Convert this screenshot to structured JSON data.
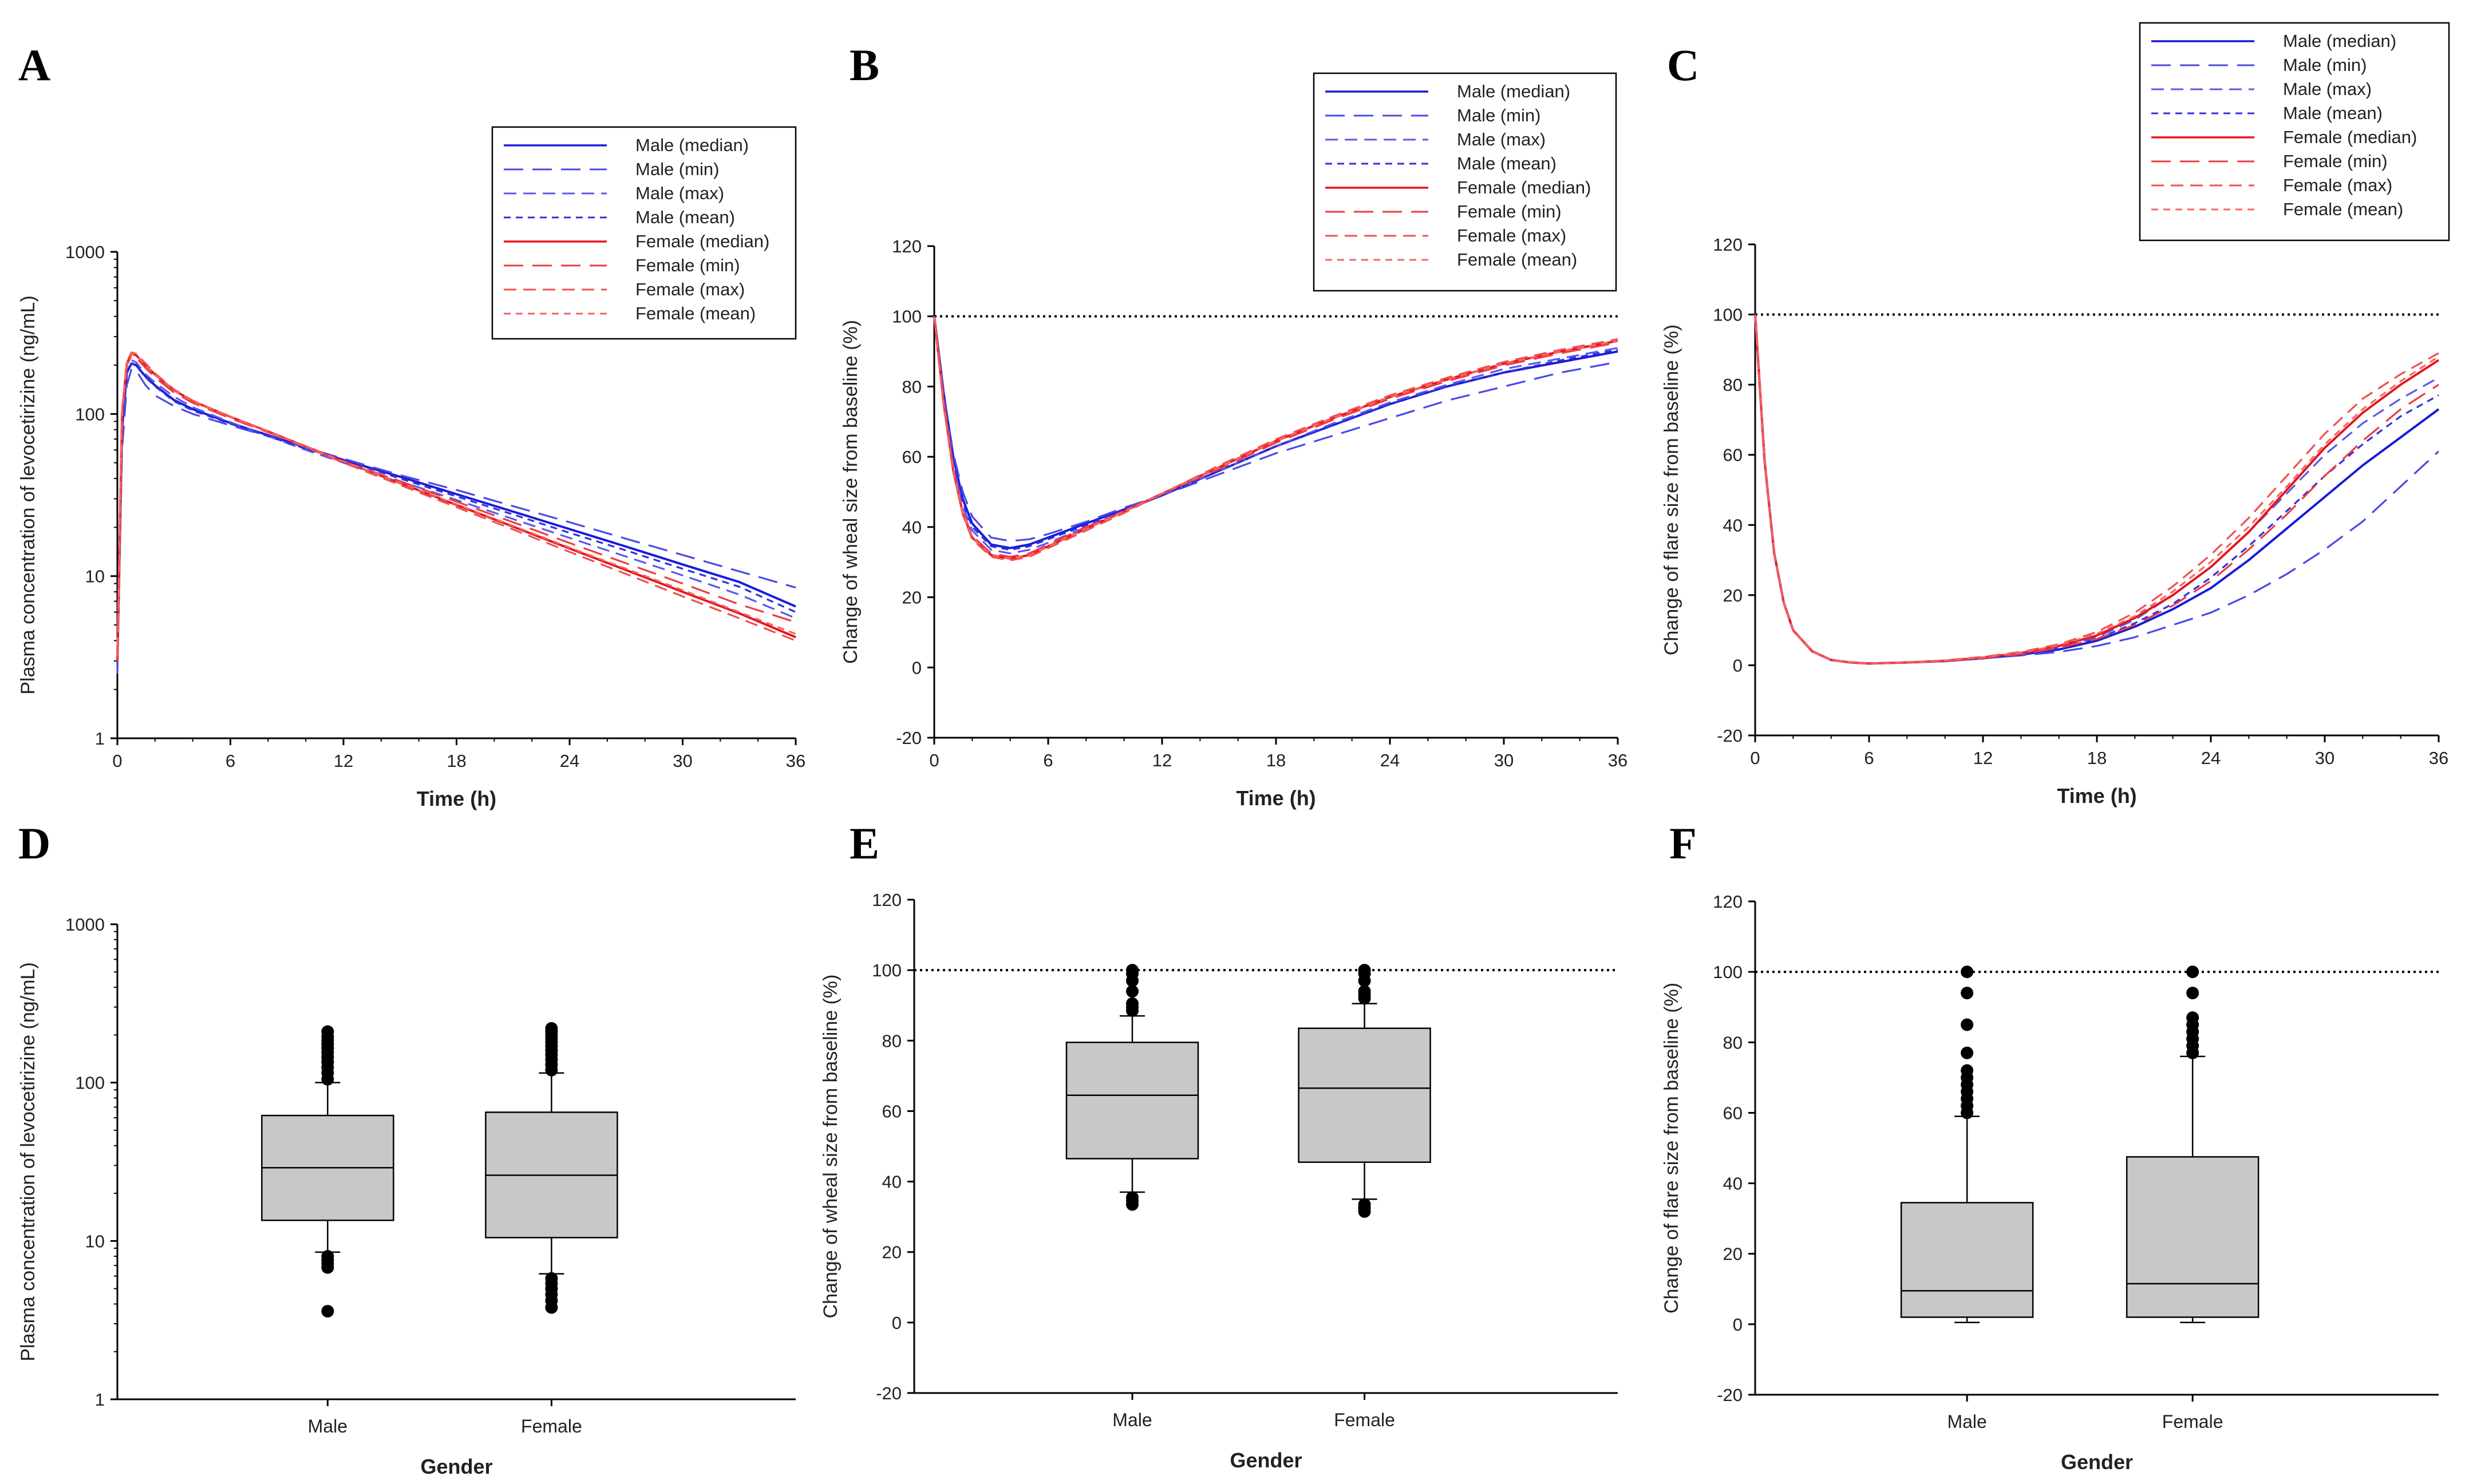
{
  "chart_data": [
    {
      "panel": "A",
      "type": "line",
      "xlabel": "Time (h)",
      "ylabel": "Plasma concentration of levocetirizine (ng/mL)",
      "yscale": "log",
      "ylim": [
        1,
        1000
      ],
      "xlim": [
        0,
        36
      ],
      "xticks": [
        "0",
        "6",
        "12",
        "18",
        "24",
        "30",
        "36"
      ],
      "yticks": [
        "1",
        "10",
        "100",
        "1000"
      ],
      "legend_position": "top-right",
      "legend": [
        "Male (median)",
        "Male (min)",
        "Male (max)",
        "Male (mean)",
        "Female (median)",
        "Female (min)",
        "Female (max)",
        "Female (mean)"
      ],
      "x": [
        0,
        0.25,
        0.5,
        0.75,
        1,
        1.5,
        2,
        3,
        4,
        6,
        8,
        10,
        12,
        15,
        18,
        21,
        24,
        27,
        30,
        33,
        36
      ],
      "series": [
        {
          "name": "Male (median)",
          "color": "#1a1adc",
          "style": "solid",
          "values": [
            3,
            80,
            180,
            205,
            200,
            170,
            150,
            122,
            107,
            88,
            74,
            62,
            52,
            41,
            32,
            25,
            19.5,
            15.2,
            11.8,
            9.2,
            6.5
          ]
        },
        {
          "name": "Male (min)",
          "color": "#4a4ae6",
          "style": "longdash",
          "values": [
            2.5,
            60,
            150,
            190,
            185,
            150,
            130,
            112,
            100,
            85,
            73,
            62,
            53,
            42,
            34,
            27,
            21.5,
            17,
            13.5,
            10.7,
            8.5
          ]
        },
        {
          "name": "Male (max)",
          "color": "#5a5aea",
          "style": "dash",
          "values": [
            3.5,
            95,
            195,
            215,
            208,
            176,
            156,
            128,
            110,
            89,
            73,
            60,
            50,
            38.5,
            29.5,
            22.5,
            17.2,
            13.2,
            10.1,
            7.7,
            5.5
          ]
        },
        {
          "name": "Male (mean)",
          "color": "#3030e0",
          "style": "shortdash",
          "values": [
            4,
            90,
            185,
            205,
            198,
            168,
            148,
            120,
            105,
            87,
            73,
            61,
            52,
            40,
            31,
            24,
            18.5,
            14.4,
            11.1,
            8.6,
            6.0
          ]
        },
        {
          "name": "Female (median)",
          "color": "#e8141e",
          "style": "solid",
          "values": [
            3,
            100,
            205,
            235,
            230,
            200,
            175,
            140,
            120,
            96,
            78,
            63,
            51,
            37.5,
            27.5,
            20.2,
            14.8,
            10.9,
            8.0,
            5.9,
            4.2
          ]
        },
        {
          "name": "Female (min)",
          "color": "#ec3c40",
          "style": "longdash",
          "values": [
            3,
            95,
            200,
            228,
            222,
            192,
            168,
            136,
            117,
            94,
            77,
            63,
            51,
            38.5,
            28.8,
            21.5,
            16.0,
            12.0,
            9.0,
            6.7,
            5.2
          ]
        },
        {
          "name": "Female (max)",
          "color": "#f05050",
          "style": "dash",
          "values": [
            3.5,
            105,
            210,
            240,
            235,
            205,
            178,
            142,
            121,
            96,
            77.5,
            62.5,
            50,
            36.5,
            26.6,
            19.4,
            14.1,
            10.3,
            7.5,
            5.5,
            4.0
          ]
        },
        {
          "name": "Female (mean)",
          "color": "#f46464",
          "style": "shortdash",
          "values": [
            3.2,
            100,
            206,
            236,
            231,
            200,
            175,
            140,
            120,
            96,
            78,
            63,
            51,
            37.6,
            27.7,
            20.4,
            15.0,
            11.1,
            8.2,
            6.0,
            4.4
          ]
        }
      ]
    },
    {
      "panel": "B",
      "type": "line",
      "xlabel": "Time (h)",
      "ylabel": "Change of wheal size from baseline (%)",
      "ylim": [
        -20,
        120
      ],
      "xlim": [
        0,
        36
      ],
      "xticks": [
        "0",
        "6",
        "12",
        "18",
        "24",
        "30",
        "36"
      ],
      "yticks": [
        "-20",
        "0",
        "20",
        "40",
        "60",
        "80",
        "100",
        "120"
      ],
      "reference_line": 100,
      "legend_position": "top-right",
      "legend": [
        "Male (median)",
        "Male (min)",
        "Male (max)",
        "Male (mean)",
        "Female (median)",
        "Female (min)",
        "Female (max)",
        "Female (mean)"
      ],
      "x": [
        0,
        0.5,
        1,
        1.5,
        2,
        3,
        4,
        5,
        6,
        8,
        10,
        12,
        15,
        18,
        21,
        24,
        27,
        30,
        33,
        36
      ],
      "series": [
        {
          "name": "Male (median)",
          "color": "#1a1adc",
          "style": "solid",
          "values": [
            100,
            78,
            60,
            48,
            41,
            35,
            34,
            35,
            37,
            41,
            45,
            49,
            56,
            63,
            69,
            75,
            80,
            84,
            87,
            90
          ]
        },
        {
          "name": "Male (min)",
          "color": "#4a4ae6",
          "style": "longdash",
          "values": [
            100,
            78,
            61,
            50,
            43,
            37,
            36,
            36.5,
            38,
            41.5,
            45.5,
            49,
            55,
            61,
            66,
            71,
            76,
            80,
            84,
            87
          ]
        },
        {
          "name": "Male (max)",
          "color": "#5a5aea",
          "style": "dash",
          "values": [
            100,
            76,
            58,
            46,
            39,
            33.5,
            32.5,
            33.5,
            35.5,
            40,
            44.5,
            49,
            56,
            63,
            69.5,
            75.5,
            80.5,
            85,
            88,
            91
          ]
        },
        {
          "name": "Male (mean)",
          "color": "#3030e0",
          "style": "shortdash",
          "values": [
            100,
            77,
            59,
            47,
            40,
            34.5,
            33.5,
            34.5,
            36.5,
            40.5,
            45,
            49,
            56,
            63,
            69,
            75,
            80,
            84,
            87.5,
            90.5
          ]
        },
        {
          "name": "Female (median)",
          "color": "#e8141e",
          "style": "solid",
          "values": [
            100,
            75,
            56,
            44,
            37,
            32,
            31,
            32,
            34.5,
            39.5,
            44.5,
            49.5,
            57,
            64.5,
            71,
            77,
            82,
            86.5,
            90,
            93
          ]
        },
        {
          "name": "Female (min)",
          "color": "#ec3c40",
          "style": "longdash",
          "values": [
            100,
            75.5,
            56.5,
            44.5,
            37.5,
            32.5,
            31.5,
            32.5,
            35,
            40,
            44.5,
            49.5,
            56.5,
            64,
            70.5,
            76.5,
            81.5,
            86,
            89.5,
            92.5
          ]
        },
        {
          "name": "Female (max)",
          "color": "#f05050",
          "style": "dash",
          "values": [
            100,
            74.5,
            55.5,
            43.5,
            36.5,
            31.5,
            30.5,
            31.5,
            34,
            39,
            44,
            49.5,
            57.5,
            65,
            71.5,
            77.5,
            82.5,
            87,
            90.5,
            93.5
          ]
        },
        {
          "name": "Female (mean)",
          "color": "#f46464",
          "style": "shortdash",
          "values": [
            100,
            75,
            56,
            44,
            37,
            32,
            31,
            32,
            34.5,
            39.5,
            44.5,
            49.5,
            57,
            64.5,
            71,
            77,
            82,
            86.5,
            90,
            93
          ]
        }
      ]
    },
    {
      "panel": "C",
      "type": "line",
      "xlabel": "Time (h)",
      "ylabel": "Change of flare size from baseline (%)",
      "ylim": [
        -20,
        120
      ],
      "xlim": [
        0,
        36
      ],
      "xticks": [
        "0",
        "6",
        "12",
        "18",
        "24",
        "30",
        "36"
      ],
      "yticks": [
        "-20",
        "0",
        "20",
        "40",
        "60",
        "80",
        "100",
        "120"
      ],
      "reference_line": 100,
      "legend_position": "top-right",
      "legend": [
        "Male (median)",
        "Male (min)",
        "Male (max)",
        "Male (mean)",
        "Female (median)",
        "Female (min)",
        "Female (max)",
        "Female (mean)"
      ],
      "x": [
        0,
        0.5,
        1,
        1.5,
        2,
        3,
        4,
        5,
        6,
        8,
        10,
        12,
        14,
        16,
        18,
        20,
        22,
        24,
        26,
        28,
        30,
        32,
        34,
        36
      ],
      "series": [
        {
          "name": "Male (median)",
          "color": "#1a1adc",
          "style": "solid",
          "values": [
            100,
            58,
            32,
            18,
            10,
            4,
            1.5,
            0.8,
            0.5,
            0.8,
            1.2,
            2,
            3,
            4.5,
            7,
            11,
            16,
            22,
            30,
            39,
            48,
            57,
            65,
            73
          ]
        },
        {
          "name": "Male (min)",
          "color": "#4a4ae6",
          "style": "longdash",
          "values": [
            100,
            58,
            32,
            18,
            10,
            4,
            1.5,
            0.8,
            0.5,
            0.8,
            1.2,
            2,
            2.8,
            3.8,
            5.5,
            8,
            11.5,
            15,
            20,
            26,
            33,
            41,
            51,
            61
          ]
        },
        {
          "name": "Male (max)",
          "color": "#5a5aea",
          "style": "dash",
          "values": [
            100,
            58,
            32,
            18,
            10,
            4,
            1.5,
            0.8,
            0.5,
            0.8,
            1.2,
            2,
            3.2,
            5,
            8,
            13,
            20,
            28,
            38,
            49,
            60,
            69,
            76,
            82
          ]
        },
        {
          "name": "Male (mean)",
          "color": "#3030e0",
          "style": "shortdash",
          "values": [
            100,
            58,
            32,
            18,
            10,
            4,
            1.5,
            0.8,
            0.5,
            0.8,
            1.2,
            2,
            3,
            4.8,
            7.5,
            12,
            17.5,
            25,
            34,
            44,
            54,
            63,
            71,
            77
          ]
        },
        {
          "name": "Female (median)",
          "color": "#e8141e",
          "style": "solid",
          "values": [
            100,
            58,
            32,
            18,
            10,
            4,
            1.5,
            0.8,
            0.5,
            0.8,
            1.3,
            2.2,
            3.5,
            5.5,
            8.5,
            13.5,
            20,
            28,
            38,
            50,
            62,
            72,
            80,
            87
          ]
        },
        {
          "name": "Female (min)",
          "color": "#ec3c40",
          "style": "longdash",
          "values": [
            100,
            58,
            32,
            18,
            10,
            4,
            1.5,
            0.8,
            0.5,
            0.8,
            1.2,
            2,
            3.2,
            5,
            7.5,
            11.5,
            17,
            24,
            33,
            43,
            54,
            64,
            73,
            80
          ]
        },
        {
          "name": "Female (max)",
          "color": "#f05050",
          "style": "dash",
          "values": [
            100,
            58,
            32,
            18,
            10,
            4,
            1.5,
            0.8,
            0.5,
            0.8,
            1.4,
            2.4,
            3.8,
            6,
            9.5,
            15,
            22.5,
            31.5,
            42,
            54,
            66,
            76,
            83,
            89
          ]
        },
        {
          "name": "Female (mean)",
          "color": "#f46464",
          "style": "shortdash",
          "values": [
            100,
            58,
            32,
            18,
            10,
            4,
            1.5,
            0.8,
            0.5,
            0.8,
            1.3,
            2.3,
            3.6,
            5.7,
            9,
            14,
            21,
            29.5,
            39.5,
            51,
            63,
            73,
            81,
            88
          ]
        }
      ]
    },
    {
      "panel": "D",
      "type": "box",
      "xlabel": "Gender",
      "ylabel": "Plasma concentration of levocetirizine (ng/mL)",
      "yscale": "log",
      "ylim": [
        1,
        1000
      ],
      "yticks": [
        "1",
        "10",
        "100",
        "1000"
      ],
      "categories": [
        "Male",
        "Female"
      ],
      "boxes": [
        {
          "q1": 13.5,
          "median": 29,
          "q3": 62,
          "whisker_low": 8.5,
          "whisker_high": 100,
          "outliers": [
            3.6,
            6.8,
            7.2,
            7.6,
            8.0,
            105,
            115,
            125,
            135,
            145,
            155,
            165,
            175,
            185,
            195,
            210
          ]
        },
        {
          "q1": 10.5,
          "median": 26,
          "q3": 65,
          "whisker_low": 6.2,
          "whisker_high": 115,
          "outliers": [
            3.8,
            4.2,
            4.6,
            5.0,
            5.4,
            5.8,
            120,
            130,
            140,
            150,
            160,
            170,
            180,
            190,
            200,
            210,
            220
          ]
        }
      ]
    },
    {
      "panel": "E",
      "type": "box",
      "xlabel": "Gender",
      "ylabel": "Change of wheal size from baseline (%)",
      "ylim": [
        -20,
        120
      ],
      "yticks": [
        "-20",
        "0",
        "20",
        "40",
        "60",
        "80",
        "100",
        "120"
      ],
      "reference_line": 100,
      "categories": [
        "Male",
        "Female"
      ],
      "boxes": [
        {
          "q1": 46.5,
          "median": 64.5,
          "q3": 79.5,
          "whisker_low": 37,
          "whisker_high": 87,
          "outliers": [
            33.5,
            34.5,
            35.5,
            88.5,
            89.5,
            90.5,
            94,
            97,
            99,
            100
          ]
        },
        {
          "q1": 45.5,
          "median": 66.5,
          "q3": 83.5,
          "whisker_low": 35,
          "whisker_high": 90.5,
          "outliers": [
            31.5,
            32.5,
            33.5,
            92,
            93,
            94,
            97,
            99,
            100
          ]
        }
      ]
    },
    {
      "panel": "F",
      "type": "box",
      "xlabel": "Gender",
      "ylabel": "Change of flare size from baseline (%)",
      "ylim": [
        -20,
        120
      ],
      "yticks": [
        "-20",
        "0",
        "20",
        "40",
        "60",
        "80",
        "100",
        "120"
      ],
      "reference_line": 100,
      "categories": [
        "Male",
        "Female"
      ],
      "boxes": [
        {
          "q1": 2,
          "median": 9.5,
          "q3": 34.5,
          "whisker_low": 0.5,
          "whisker_high": 59,
          "outliers": [
            60,
            62,
            64,
            66,
            68,
            70,
            72,
            77,
            85,
            94,
            100
          ]
        },
        {
          "q1": 2,
          "median": 11.5,
          "q3": 47.5,
          "whisker_low": 0.5,
          "whisker_high": 76,
          "outliers": [
            77,
            79,
            81,
            83,
            85,
            87,
            94,
            100
          ]
        }
      ]
    }
  ]
}
